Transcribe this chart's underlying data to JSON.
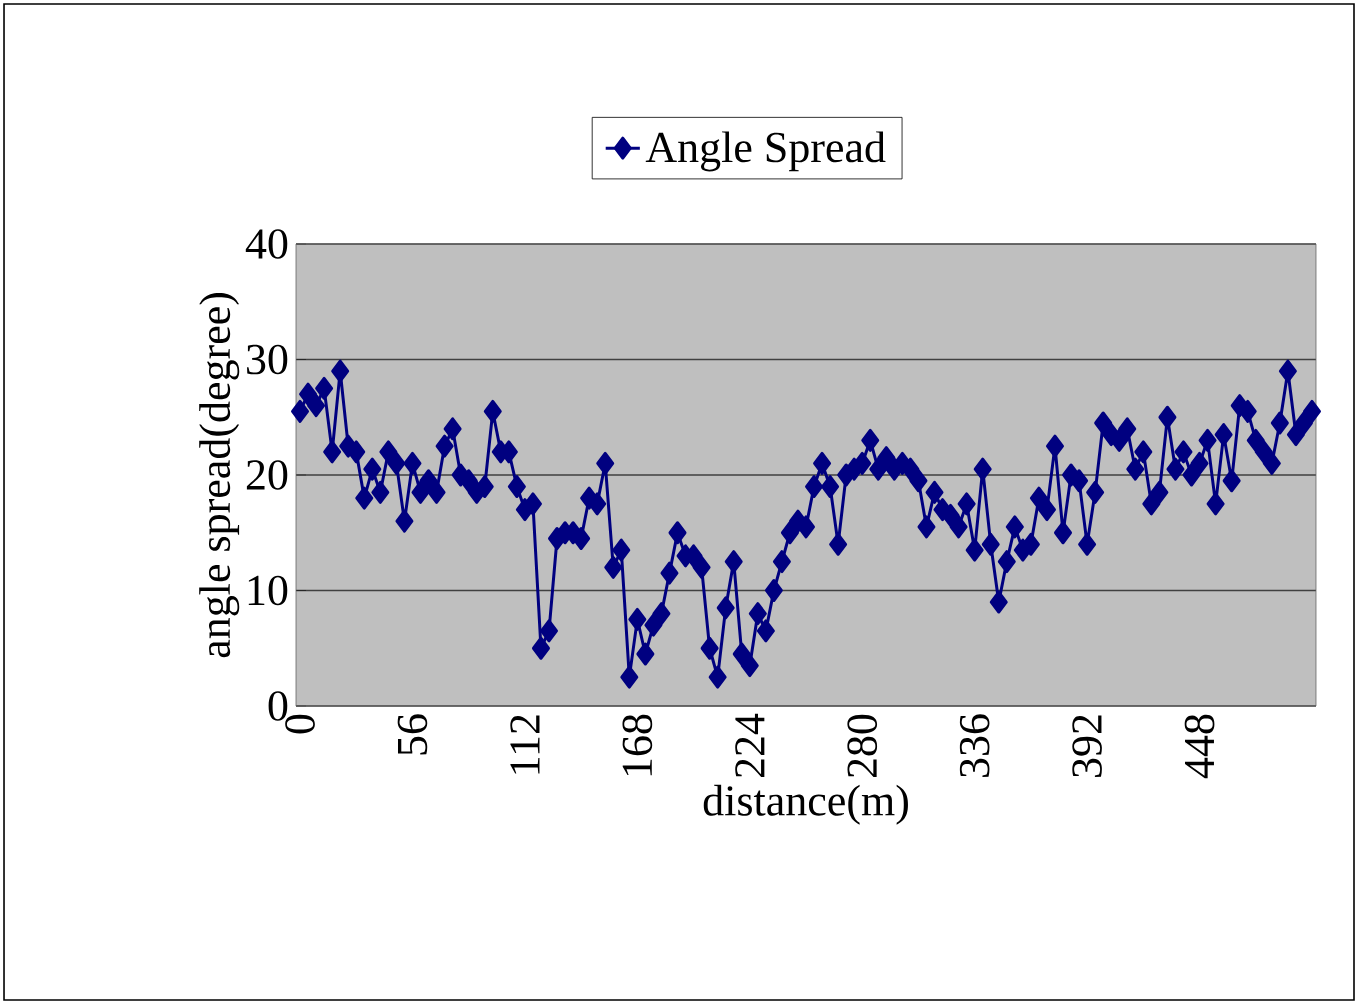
{
  "chart_data": {
    "type": "line",
    "xlabel": "distance(m)",
    "ylabel": "angle spread(degree)",
    "categories": [
      "0",
      null,
      null,
      null,
      null,
      null,
      null,
      null,
      null,
      null,
      null,
      null,
      null,
      null,
      "56",
      null,
      null,
      null,
      null,
      null,
      null,
      null,
      null,
      null,
      null,
      null,
      null,
      null,
      "112",
      null,
      null,
      null,
      null,
      null,
      null,
      null,
      null,
      null,
      null,
      null,
      null,
      null,
      "168",
      null,
      null,
      null,
      null,
      null,
      null,
      null,
      null,
      null,
      null,
      null,
      null,
      null,
      "224",
      null,
      null,
      null,
      null,
      null,
      null,
      null,
      null,
      null,
      null,
      null,
      null,
      null,
      "280",
      null,
      null,
      null,
      null,
      null,
      null,
      null,
      null,
      null,
      null,
      null,
      null,
      null,
      "336",
      null,
      null,
      null,
      null,
      null,
      null,
      null,
      null,
      null,
      null,
      null,
      null,
      null,
      "392",
      null,
      null,
      null,
      null,
      null,
      null,
      null,
      null,
      null,
      null,
      null,
      null,
      null,
      "448",
      null,
      null,
      null,
      null,
      null,
      null,
      null,
      null,
      null,
      null,
      null,
      null,
      null,
      null
    ],
    "series": [
      {
        "name": "Angle Spread",
        "color": "#000080",
        "values": [
          25.5,
          27,
          26,
          27.5,
          22,
          29,
          22.5,
          22,
          18,
          20.5,
          18.5,
          22,
          21,
          16,
          21,
          18.5,
          19.5,
          18.5,
          22.5,
          24,
          20,
          19.5,
          18.5,
          19,
          25.5,
          22,
          22,
          19,
          17,
          17.5,
          5,
          6.5,
          14.5,
          15,
          15,
          14.5,
          18,
          17.5,
          21,
          12,
          13.5,
          2.5,
          7.5,
          4.5,
          7,
          8,
          11.5,
          15,
          13,
          13,
          12,
          5,
          2.5,
          8.5,
          12.5,
          4.5,
          3.5,
          8,
          6.5,
          10,
          12.5,
          15,
          16,
          15.5,
          19,
          21,
          19,
          14,
          20,
          20.5,
          21,
          23,
          20.5,
          21.5,
          20.5,
          21,
          20.5,
          19.5,
          15.5,
          18.5,
          17,
          16.5,
          15.5,
          17.5,
          13.5,
          20.5,
          14,
          9,
          12.5,
          15.5,
          13.5,
          14,
          18,
          17,
          22.5,
          15,
          20,
          19.5,
          14,
          18.5,
          24.5,
          23.5,
          23,
          24,
          20.5,
          22,
          17.5,
          18.5,
          25,
          20.5,
          22,
          20,
          21,
          23,
          17.5,
          23.5,
          19.5,
          26,
          25.5,
          23,
          22,
          21,
          24.5,
          29,
          23.5,
          24.5,
          25.5
        ]
      }
    ],
    "ylim": [
      0,
      40
    ],
    "yticks": [
      0,
      10,
      20,
      30,
      40
    ],
    "grid": "y",
    "legend": "top",
    "marker": "diamond",
    "line_style": "solid"
  }
}
